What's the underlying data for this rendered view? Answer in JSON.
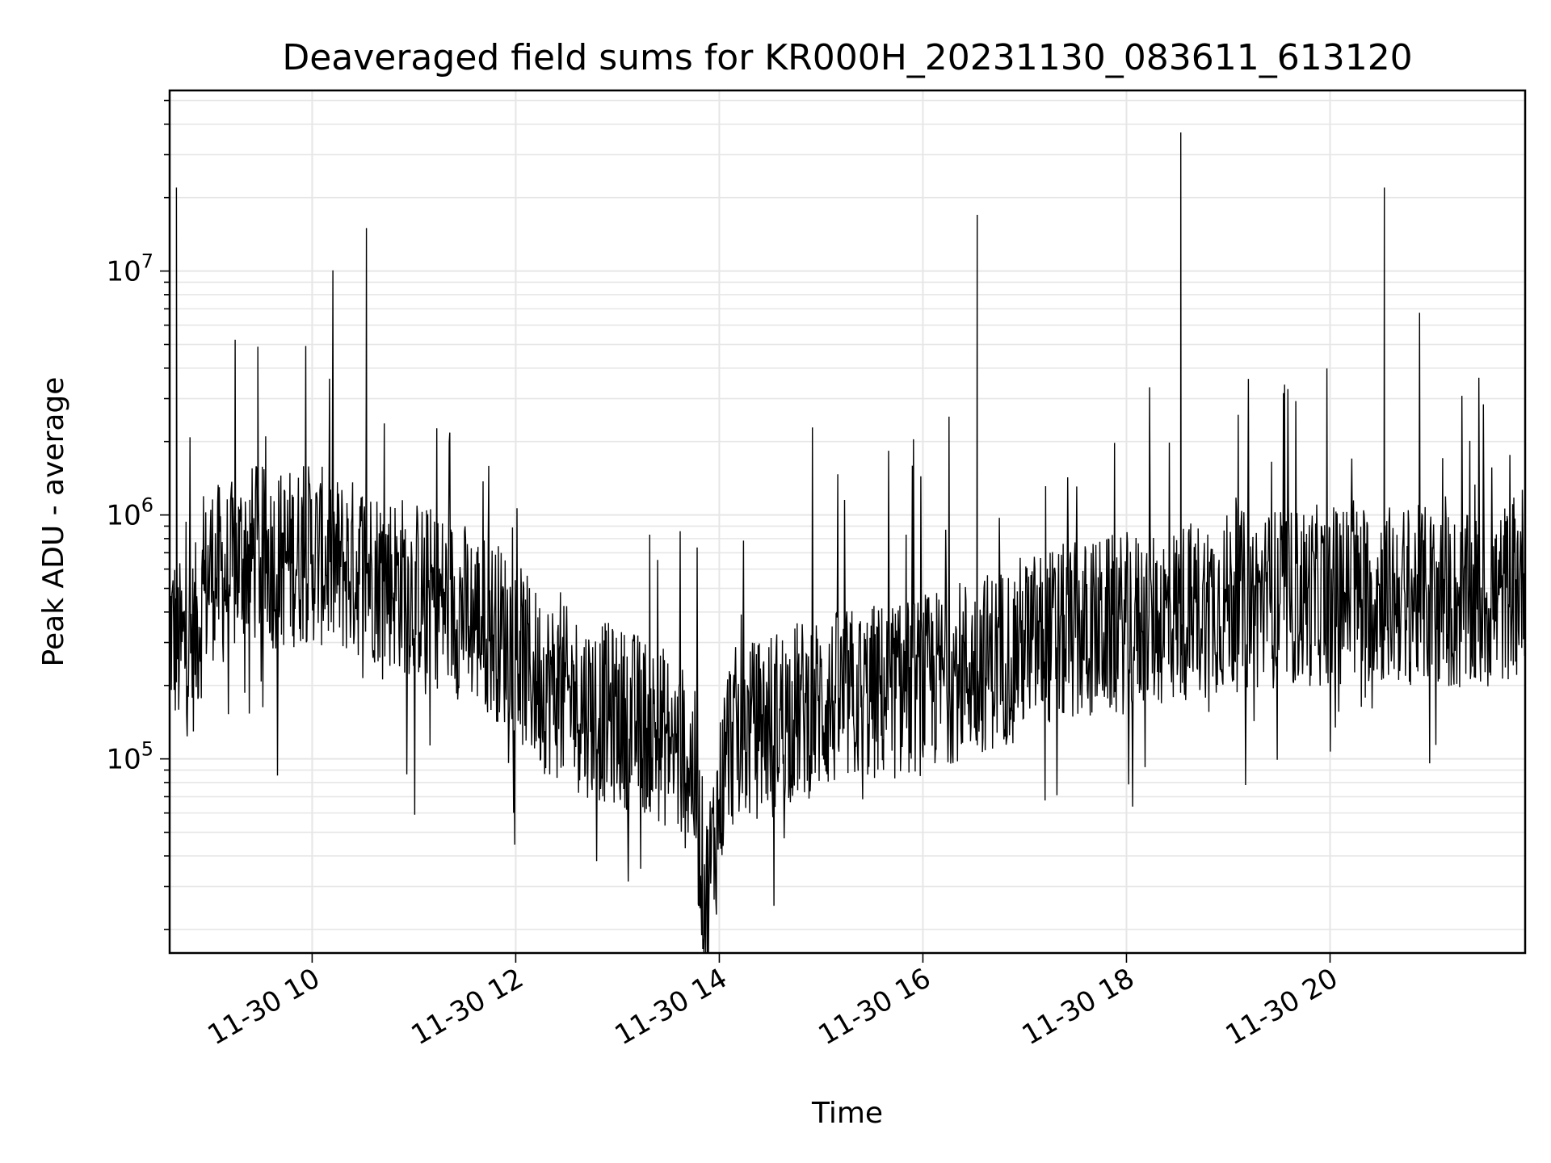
{
  "chart_data": {
    "type": "line",
    "title": "Deaveraged field sums for KR000H_20231130_083611_613120",
    "xlabel": "Time",
    "ylabel": "Peak ADU - average",
    "yscale": "log",
    "grid": true,
    "line_color": "#000000",
    "grid_color": "#e6e6e6",
    "xlim": [
      "2023-11-30 08:36",
      "2023-11-30 21:55"
    ],
    "ylim": [
      16000,
      55000000
    ],
    "x_ticks": [
      "11-30 10",
      "11-30 12",
      "11-30 14",
      "11-30 16",
      "11-30 18",
      "11-30 20"
    ],
    "x_tick_times": [
      "2023-11-30 10:00",
      "2023-11-30 12:00",
      "2023-11-30 14:00",
      "2023-11-30 16:00",
      "2023-11-30 18:00",
      "2023-11-30 20:00"
    ],
    "y_ticks": [
      {
        "value": 100000,
        "base": "10",
        "exp": "5"
      },
      {
        "value": 1000000,
        "base": "10",
        "exp": "6"
      },
      {
        "value": 10000000,
        "base": "10",
        "exp": "7"
      }
    ],
    "series": [
      {
        "x": [
          "2023-11-30 08:36",
          "2023-11-30 08:40",
          "2023-11-30 08:42",
          "2023-11-30 08:50",
          "2023-11-30 09:00",
          "2023-11-30 09:10",
          "2023-11-30 09:20",
          "2023-11-30 09:28",
          "2023-11-30 09:40",
          "2023-11-30 10:00",
          "2023-11-30 10:15",
          "2023-11-30 10:30",
          "2023-11-30 10:32",
          "2023-11-30 10:45",
          "2023-11-30 11:00",
          "2023-11-30 11:15",
          "2023-11-30 11:30",
          "2023-11-30 11:45",
          "2023-11-30 11:58",
          "2023-11-30 12:10",
          "2023-11-30 12:30",
          "2023-11-30 12:45",
          "2023-11-30 13:00",
          "2023-11-30 13:15",
          "2023-11-30 13:30",
          "2023-11-30 13:45",
          "2023-11-30 13:52",
          "2023-11-30 14:05",
          "2023-11-30 14:20",
          "2023-11-30 14:35",
          "2023-11-30 14:50",
          "2023-11-30 15:05",
          "2023-11-30 15:20",
          "2023-11-30 15:40",
          "2023-11-30 16:00",
          "2023-11-30 16:20",
          "2023-11-30 16:32",
          "2023-11-30 16:45",
          "2023-11-30 17:00",
          "2023-11-30 17:20",
          "2023-11-30 17:40",
          "2023-11-30 18:00",
          "2023-11-30 18:20",
          "2023-11-30 18:32",
          "2023-11-30 18:45",
          "2023-11-30 19:00",
          "2023-11-30 19:20",
          "2023-11-30 19:40",
          "2023-11-30 20:00",
          "2023-11-30 20:15",
          "2023-11-30 20:32",
          "2023-11-30 20:45",
          "2023-11-30 21:00",
          "2023-11-30 21:20",
          "2023-11-30 21:40",
          "2023-11-30 21:55"
        ],
        "y": [
          350000,
          22000000,
          280000,
          300000,
          600000,
          550000,
          700000,
          4900000,
          650000,
          700000,
          620000,
          600000,
          15000000,
          550000,
          500000,
          450000,
          400000,
          350000,
          300000,
          220000,
          180000,
          160000,
          150000,
          140000,
          120000,
          90000,
          25000,
          120000,
          130000,
          150000,
          160000,
          170000,
          180000,
          190000,
          200000,
          230000,
          17000000,
          260000,
          300000,
          320000,
          340000,
          360000,
          380000,
          37000000,
          420000,
          440000,
          450000,
          460000,
          470000,
          480000,
          22000000,
          470000,
          460000,
          420000,
          450000,
          600000
        ]
      }
    ]
  }
}
